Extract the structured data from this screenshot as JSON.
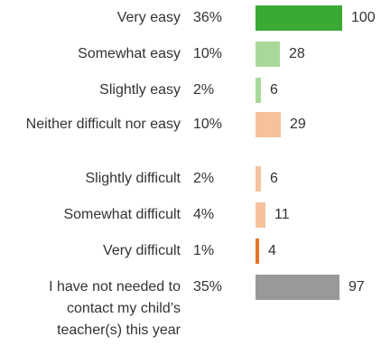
{
  "chart_data": {
    "type": "bar",
    "orientation": "horizontal",
    "categories": [
      "Very easy",
      "Somewhat easy",
      "Slightly easy",
      "Neither difficult nor easy",
      "Slightly difficult",
      "Somewhat difficult",
      "Very difficult",
      "I have not needed to contact my child’s teacher(s) this year"
    ],
    "percent_labels": [
      "36%",
      "10%",
      "2%",
      "10%",
      "2%",
      "4%",
      "1%",
      "35%"
    ],
    "values": [
      100,
      28,
      6,
      29,
      6,
      11,
      4,
      97
    ],
    "colors": [
      "#3aaa35",
      "#a8d99a",
      "#a8d99a",
      "#f5c29c",
      "#f5c29c",
      "#f5c29c",
      "#e8742a",
      "#999999"
    ],
    "xlim": [
      0,
      100
    ],
    "grid": false,
    "legend": "none",
    "title": "",
    "xlabel": "",
    "ylabel": ""
  }
}
